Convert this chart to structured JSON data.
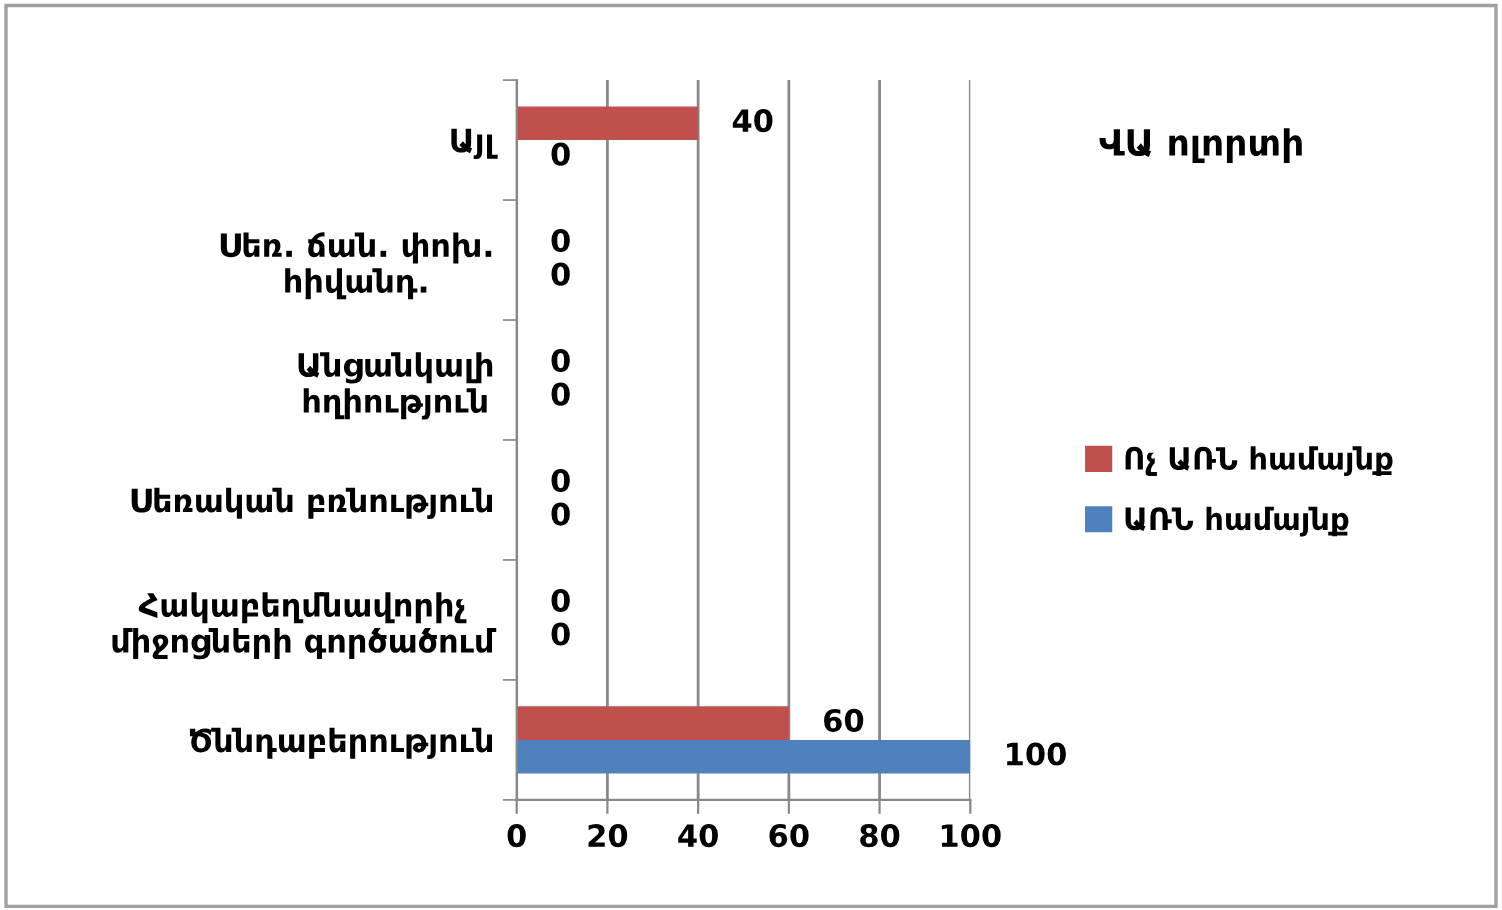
{
  "chart_data": {
    "type": "bar",
    "orientation": "horizontal",
    "title": "ՎԱ ոլորտի",
    "categories": [
      "Այլ",
      "Սեռ. ճան. փոխ.\nհիվանդ.",
      "Անցանկալի\nհղիություն",
      "Սեռական բռնություն",
      "Հակաբեղմնավորիչ\nմիջոցների գործածում",
      "Ծննդաբերություն"
    ],
    "series": [
      {
        "name": "Ոչ ԱՌՆ համայնք",
        "color": "#c0504d",
        "values": [
          40,
          0,
          0,
          0,
          0,
          60
        ]
      },
      {
        "name": "ԱՌՆ համայնք",
        "color": "#4f81bd",
        "values": [
          0,
          0,
          0,
          0,
          0,
          100
        ]
      }
    ],
    "xlim": [
      0,
      100
    ],
    "xticks": [
      0,
      20,
      40,
      60,
      80,
      100
    ],
    "grid": "x",
    "legend": "right",
    "data_labels": true
  }
}
